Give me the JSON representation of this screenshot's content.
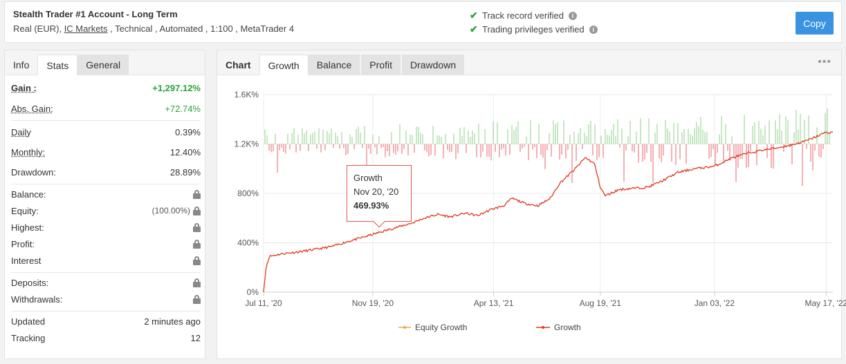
{
  "header": {
    "title": "Stealth Trader #1 Account - Long Term",
    "sub_prefix": "Real (EUR), ",
    "broker": "IC Markets",
    "sub_suffix": " , Technical , Automated , 1:100 , MetaTrader 4",
    "verified_1": "Track record verified",
    "verified_2": "Trading privileges verified",
    "copy_label": "Copy"
  },
  "left_tabs": [
    "Info",
    "Stats",
    "General"
  ],
  "stats": {
    "gain": {
      "label": "Gain :",
      "value": "+1,297.12%"
    },
    "abs_gain": {
      "label": "Abs. Gain:",
      "value": "+72.74%"
    },
    "daily": {
      "label": "Daily",
      "value": "0.39%"
    },
    "monthly": {
      "label": "Monthly:",
      "value": "12.40%"
    },
    "drawdown": {
      "label": "Drawdown:",
      "value": "28.89%"
    },
    "balance": {
      "label": "Balance:"
    },
    "equity": {
      "label": "Equity:",
      "value": "(100.00%)"
    },
    "highest": {
      "label": "Highest:"
    },
    "profit": {
      "label": "Profit:"
    },
    "interest": {
      "label": "Interest"
    },
    "deposits": {
      "label": "Deposits:"
    },
    "withdrawals": {
      "label": "Withdrawals:"
    },
    "updated": {
      "label": "Updated",
      "value": "2 minutes ago"
    },
    "tracking": {
      "label": "Tracking",
      "value": "12"
    }
  },
  "chart_tabs": [
    "Chart",
    "Growth",
    "Balance",
    "Profit",
    "Drawdown"
  ],
  "tooltip": {
    "title": "Growth",
    "date": "Nov 20, '20",
    "value": "469.93%"
  },
  "colors": {
    "growth": "#e0381e",
    "equity": "#f0a050",
    "bar_pos": "#8fd18a",
    "bar_neg": "#e8606a",
    "accent": "#3a93e0"
  },
  "chart_data": {
    "type": "line",
    "y_ticks": [
      "0%",
      "400%",
      "800%",
      "1.2K%",
      "1.6K%"
    ],
    "ylim": [
      0,
      1600
    ],
    "x_ticks": [
      "Jul 11, '20",
      "Nov 19, '20",
      "Apr 13, '21",
      "Aug 19, '21",
      "Jan 03, '22",
      "May 17, '22"
    ],
    "x_range": [
      "2020-07-11",
      "2022-05-25"
    ],
    "series": [
      {
        "name": "Equity Growth",
        "points": []
      },
      {
        "name": "Growth",
        "points": [
          [
            "2020-07-11",
            0
          ],
          [
            "2020-07-14",
            200
          ],
          [
            "2020-07-18",
            290
          ],
          [
            "2020-08-01",
            310
          ],
          [
            "2020-08-20",
            325
          ],
          [
            "2020-09-10",
            345
          ],
          [
            "2020-10-01",
            370
          ],
          [
            "2020-10-20",
            410
          ],
          [
            "2020-11-05",
            440
          ],
          [
            "2020-11-20",
            470
          ],
          [
            "2020-12-10",
            510
          ],
          [
            "2021-01-05",
            560
          ],
          [
            "2021-01-20",
            600
          ],
          [
            "2021-02-05",
            630
          ],
          [
            "2021-02-20",
            610
          ],
          [
            "2021-03-10",
            640
          ],
          [
            "2021-03-25",
            620
          ],
          [
            "2021-04-10",
            670
          ],
          [
            "2021-04-25",
            700
          ],
          [
            "2021-05-05",
            760
          ],
          [
            "2021-05-20",
            720
          ],
          [
            "2021-06-05",
            700
          ],
          [
            "2021-06-20",
            760
          ],
          [
            "2021-07-01",
            880
          ],
          [
            "2021-07-20",
            1000
          ],
          [
            "2021-08-01",
            1090
          ],
          [
            "2021-08-12",
            1040
          ],
          [
            "2021-08-19",
            850
          ],
          [
            "2021-08-25",
            780
          ],
          [
            "2021-09-10",
            830
          ],
          [
            "2021-09-25",
            840
          ],
          [
            "2021-10-15",
            850
          ],
          [
            "2021-11-01",
            900
          ],
          [
            "2021-11-20",
            970
          ],
          [
            "2021-12-10",
            1000
          ],
          [
            "2022-01-03",
            1020
          ],
          [
            "2022-01-25",
            1090
          ],
          [
            "2022-02-15",
            1130
          ],
          [
            "2022-03-01",
            1150
          ],
          [
            "2022-03-20",
            1170
          ],
          [
            "2022-04-10",
            1200
          ],
          [
            "2022-04-25",
            1230
          ],
          [
            "2022-05-05",
            1260
          ],
          [
            "2022-05-15",
            1290
          ],
          [
            "2022-05-25",
            1297
          ]
        ]
      }
    ]
  }
}
